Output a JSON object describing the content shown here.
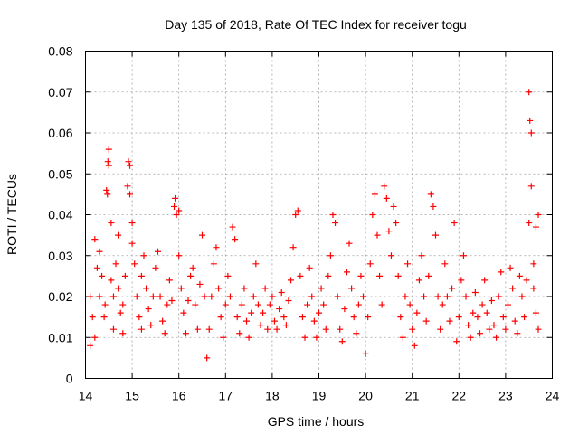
{
  "chart_data": {
    "type": "scatter",
    "title": "Day 135 of 2018, Rate Of TEC Index for receiver togu",
    "xlabel": "GPS time / hours",
    "ylabel": "ROTI / TECUs",
    "xlim": [
      14,
      24
    ],
    "ylim": [
      0,
      0.08
    ],
    "x_ticks": [
      "14",
      "15",
      "16",
      "17",
      "18",
      "19",
      "20",
      "21",
      "22",
      "23",
      "24"
    ],
    "y_ticks": [
      "0",
      "0.01",
      "0.02",
      "0.03",
      "0.04",
      "0.05",
      "0.06",
      "0.07",
      "0.08"
    ],
    "grid": true,
    "marker": "+",
    "series": [
      {
        "color": "#ff0000",
        "points": [
          [
            14.1,
            0.008
          ],
          [
            14.1,
            0.02
          ],
          [
            14.15,
            0.015
          ],
          [
            14.2,
            0.034
          ],
          [
            14.2,
            0.01
          ],
          [
            14.25,
            0.027
          ],
          [
            14.3,
            0.031
          ],
          [
            14.3,
            0.02
          ],
          [
            14.35,
            0.025
          ],
          [
            14.4,
            0.015
          ],
          [
            14.42,
            0.018
          ],
          [
            14.45,
            0.046
          ],
          [
            14.47,
            0.045
          ],
          [
            14.48,
            0.053
          ],
          [
            14.5,
            0.056
          ],
          [
            14.5,
            0.052
          ],
          [
            14.55,
            0.038
          ],
          [
            14.55,
            0.024
          ],
          [
            14.6,
            0.012
          ],
          [
            14.6,
            0.02
          ],
          [
            14.65,
            0.028
          ],
          [
            14.7,
            0.035
          ],
          [
            14.7,
            0.022
          ],
          [
            14.75,
            0.016
          ],
          [
            14.8,
            0.011
          ],
          [
            14.8,
            0.018
          ],
          [
            14.85,
            0.025
          ],
          [
            14.9,
            0.047
          ],
          [
            14.92,
            0.053
          ],
          [
            14.95,
            0.052
          ],
          [
            14.95,
            0.045
          ],
          [
            15.0,
            0.033
          ],
          [
            15.0,
            0.038
          ],
          [
            15.05,
            0.028
          ],
          [
            15.1,
            0.02
          ],
          [
            15.15,
            0.015
          ],
          [
            15.2,
            0.012
          ],
          [
            15.2,
            0.025
          ],
          [
            15.25,
            0.03
          ],
          [
            15.3,
            0.022
          ],
          [
            15.35,
            0.017
          ],
          [
            15.4,
            0.013
          ],
          [
            15.45,
            0.02
          ],
          [
            15.5,
            0.027
          ],
          [
            15.55,
            0.031
          ],
          [
            15.6,
            0.02
          ],
          [
            15.65,
            0.014
          ],
          [
            15.7,
            0.011
          ],
          [
            15.75,
            0.018
          ],
          [
            15.8,
            0.024
          ],
          [
            15.85,
            0.019
          ],
          [
            15.9,
            0.042
          ],
          [
            15.92,
            0.044
          ],
          [
            15.95,
            0.04
          ],
          [
            16.0,
            0.041
          ],
          [
            16.0,
            0.03
          ],
          [
            16.05,
            0.022
          ],
          [
            16.1,
            0.016
          ],
          [
            16.15,
            0.011
          ],
          [
            16.2,
            0.019
          ],
          [
            16.25,
            0.025
          ],
          [
            16.3,
            0.027
          ],
          [
            16.35,
            0.018
          ],
          [
            16.4,
            0.012
          ],
          [
            16.45,
            0.023
          ],
          [
            16.5,
            0.035
          ],
          [
            16.55,
            0.02
          ],
          [
            16.6,
            0.005
          ],
          [
            16.65,
            0.012
          ],
          [
            16.7,
            0.02
          ],
          [
            16.75,
            0.028
          ],
          [
            16.8,
            0.032
          ],
          [
            16.85,
            0.022
          ],
          [
            16.9,
            0.015
          ],
          [
            16.95,
            0.01
          ],
          [
            17.0,
            0.018
          ],
          [
            17.05,
            0.025
          ],
          [
            17.1,
            0.02
          ],
          [
            17.15,
            0.037
          ],
          [
            17.2,
            0.034
          ],
          [
            17.25,
            0.015
          ],
          [
            17.3,
            0.011
          ],
          [
            17.35,
            0.018
          ],
          [
            17.4,
            0.022
          ],
          [
            17.45,
            0.014
          ],
          [
            17.5,
            0.01
          ],
          [
            17.55,
            0.016
          ],
          [
            17.6,
            0.02
          ],
          [
            17.65,
            0.028
          ],
          [
            17.7,
            0.018
          ],
          [
            17.75,
            0.013
          ],
          [
            17.8,
            0.016
          ],
          [
            17.85,
            0.022
          ],
          [
            17.9,
            0.012
          ],
          [
            17.95,
            0.018
          ],
          [
            18.0,
            0.02
          ],
          [
            18.05,
            0.014
          ],
          [
            18.1,
            0.012
          ],
          [
            18.15,
            0.017
          ],
          [
            18.2,
            0.021
          ],
          [
            18.25,
            0.015
          ],
          [
            18.3,
            0.013
          ],
          [
            18.35,
            0.019
          ],
          [
            18.4,
            0.024
          ],
          [
            18.45,
            0.032
          ],
          [
            18.5,
            0.04
          ],
          [
            18.55,
            0.041
          ],
          [
            18.6,
            0.025
          ],
          [
            18.65,
            0.015
          ],
          [
            18.7,
            0.01
          ],
          [
            18.75,
            0.018
          ],
          [
            18.8,
            0.027
          ],
          [
            18.85,
            0.02
          ],
          [
            18.9,
            0.014
          ],
          [
            18.95,
            0.01
          ],
          [
            19.0,
            0.016
          ],
          [
            19.05,
            0.022
          ],
          [
            19.1,
            0.018
          ],
          [
            19.15,
            0.012
          ],
          [
            19.2,
            0.025
          ],
          [
            19.25,
            0.03
          ],
          [
            19.3,
            0.04
          ],
          [
            19.35,
            0.038
          ],
          [
            19.4,
            0.02
          ],
          [
            19.45,
            0.012
          ],
          [
            19.5,
            0.009
          ],
          [
            19.55,
            0.017
          ],
          [
            19.6,
            0.026
          ],
          [
            19.65,
            0.033
          ],
          [
            19.7,
            0.022
          ],
          [
            19.75,
            0.015
          ],
          [
            19.8,
            0.011
          ],
          [
            19.85,
            0.018
          ],
          [
            19.9,
            0.025
          ],
          [
            19.95,
            0.02
          ],
          [
            20.0,
            0.006
          ],
          [
            20.05,
            0.015
          ],
          [
            20.1,
            0.028
          ],
          [
            20.15,
            0.04
          ],
          [
            20.2,
            0.045
          ],
          [
            20.25,
            0.035
          ],
          [
            20.3,
            0.025
          ],
          [
            20.35,
            0.018
          ],
          [
            20.4,
            0.047
          ],
          [
            20.45,
            0.044
          ],
          [
            20.5,
            0.036
          ],
          [
            20.55,
            0.03
          ],
          [
            20.6,
            0.042
          ],
          [
            20.65,
            0.038
          ],
          [
            20.7,
            0.025
          ],
          [
            20.75,
            0.015
          ],
          [
            20.8,
            0.01
          ],
          [
            20.85,
            0.02
          ],
          [
            20.9,
            0.028
          ],
          [
            20.95,
            0.018
          ],
          [
            21.0,
            0.012
          ],
          [
            21.05,
            0.008
          ],
          [
            21.1,
            0.016
          ],
          [
            21.15,
            0.024
          ],
          [
            21.2,
            0.03
          ],
          [
            21.25,
            0.02
          ],
          [
            21.3,
            0.014
          ],
          [
            21.35,
            0.025
          ],
          [
            21.4,
            0.045
          ],
          [
            21.45,
            0.042
          ],
          [
            21.5,
            0.035
          ],
          [
            21.55,
            0.02
          ],
          [
            21.6,
            0.012
          ],
          [
            21.65,
            0.018
          ],
          [
            21.7,
            0.028
          ],
          [
            21.75,
            0.02
          ],
          [
            21.8,
            0.014
          ],
          [
            21.85,
            0.022
          ],
          [
            21.9,
            0.038
          ],
          [
            21.95,
            0.009
          ],
          [
            22.0,
            0.015
          ],
          [
            22.05,
            0.024
          ],
          [
            22.1,
            0.03
          ],
          [
            22.15,
            0.02
          ],
          [
            22.2,
            0.013
          ],
          [
            22.25,
            0.01
          ],
          [
            22.3,
            0.016
          ],
          [
            22.35,
            0.021
          ],
          [
            22.4,
            0.015
          ],
          [
            22.45,
            0.011
          ],
          [
            22.5,
            0.018
          ],
          [
            22.55,
            0.024
          ],
          [
            22.6,
            0.016
          ],
          [
            22.65,
            0.012
          ],
          [
            22.7,
            0.019
          ],
          [
            22.75,
            0.013
          ],
          [
            22.8,
            0.01
          ],
          [
            22.85,
            0.02
          ],
          [
            22.9,
            0.026
          ],
          [
            22.95,
            0.015
          ],
          [
            23.0,
            0.012
          ],
          [
            23.05,
            0.018
          ],
          [
            23.1,
            0.027
          ],
          [
            23.15,
            0.022
          ],
          [
            23.2,
            0.014
          ],
          [
            23.25,
            0.011
          ],
          [
            23.3,
            0.025
          ],
          [
            23.35,
            0.02
          ],
          [
            23.4,
            0.015
          ],
          [
            23.45,
            0.024
          ],
          [
            23.5,
            0.038
          ],
          [
            23.5,
            0.07
          ],
          [
            23.52,
            0.063
          ],
          [
            23.55,
            0.06
          ],
          [
            23.55,
            0.047
          ],
          [
            23.6,
            0.022
          ],
          [
            23.6,
            0.028
          ],
          [
            23.65,
            0.016
          ],
          [
            23.65,
            0.037
          ],
          [
            23.7,
            0.012
          ],
          [
            23.7,
            0.04
          ]
        ]
      }
    ]
  }
}
